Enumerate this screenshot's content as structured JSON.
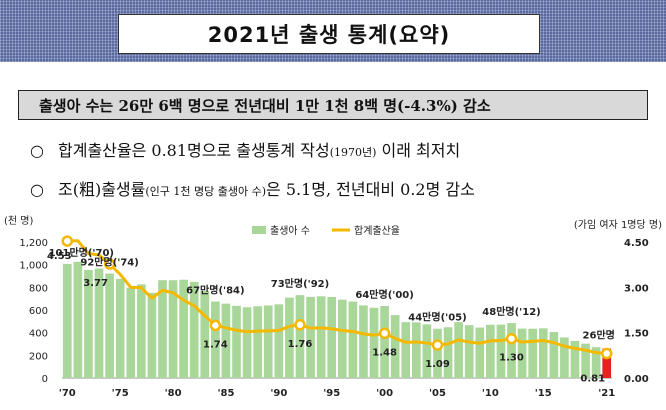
{
  "header": {
    "title": "2021년 출생 통계(요약)"
  },
  "summary": {
    "text": "출생아 수는 26만 6백 명으로 전년대비 1만 1천 8백 명(-4.3%) 감소"
  },
  "bullets": [
    {
      "mark": "○",
      "text": "합계출산율은 0.81명으로 출생통계 작성",
      "small": "(1970년)",
      "tail": " 이래 최저치"
    },
    {
      "mark": "○",
      "text": "조(粗)출생률",
      "small": "(인구 1천 명당 출생아 수)",
      "tail": "은 5.1명, 전년대비 0.2명 감소"
    }
  ],
  "chart_data": {
    "type": "bar+line",
    "left_axis_label": "(천 명)",
    "right_axis_label": "(가임 여자 1명당 명)",
    "left_ticks": [
      "1,200",
      "1,000",
      "800",
      "600",
      "400",
      "200",
      "0"
    ],
    "left_ylim": [
      0,
      1200
    ],
    "right_ticks": [
      "4.50",
      "3.00",
      "1.50",
      "0.00"
    ],
    "right_ylim": [
      0,
      4.5
    ],
    "x_ticks": [
      "'70",
      "'75",
      "'80",
      "'85",
      "'90",
      "'95",
      "'00",
      "'05",
      "'10",
      "'15",
      "'21"
    ],
    "legend": [
      "출생아 수",
      "합계출산율"
    ],
    "colors": {
      "bars": "#a9d79a",
      "highlight_bar": "#e8231f",
      "line": "#f5b800",
      "marker_fill": "#ffffff"
    },
    "years": [
      1970,
      1971,
      1972,
      1973,
      1974,
      1975,
      1976,
      1977,
      1978,
      1979,
      1980,
      1981,
      1982,
      1983,
      1984,
      1985,
      1986,
      1987,
      1988,
      1989,
      1990,
      1991,
      1992,
      1993,
      1994,
      1995,
      1996,
      1997,
      1998,
      1999,
      2000,
      2001,
      2002,
      2003,
      2004,
      2005,
      2006,
      2007,
      2008,
      2009,
      2010,
      2011,
      2012,
      2013,
      2014,
      2015,
      2016,
      2017,
      2018,
      2019,
      2020,
      2021
    ],
    "births": [
      1007,
      1025,
      953,
      966,
      922,
      875,
      797,
      826,
      751,
      863,
      863,
      867,
      848,
      770,
      675,
      656,
      637,
      624,
      633,
      640,
      650,
      709,
      731,
      716,
      721,
      715,
      691,
      675,
      641,
      620,
      635,
      555,
      493,
      491,
      473,
      435,
      448,
      493,
      466,
      445,
      470,
      471,
      485,
      436,
      435,
      438,
      406,
      358,
      327,
      303,
      272,
      260
    ],
    "tfr": [
      4.53,
      4.54,
      4.12,
      4.07,
      3.77,
      3.43,
      3.0,
      2.99,
      2.64,
      2.9,
      2.82,
      2.57,
      2.39,
      2.06,
      1.74,
      1.66,
      1.58,
      1.53,
      1.55,
      1.56,
      1.57,
      1.71,
      1.76,
      1.65,
      1.66,
      1.63,
      1.57,
      1.54,
      1.46,
      1.42,
      1.48,
      1.31,
      1.18,
      1.19,
      1.16,
      1.09,
      1.13,
      1.26,
      1.19,
      1.15,
      1.23,
      1.24,
      1.3,
      1.19,
      1.21,
      1.24,
      1.17,
      1.05,
      0.98,
      0.92,
      0.84,
      0.81
    ],
    "birth_labels": [
      {
        "text": "101만명('70)",
        "year": 1970
      },
      {
        "text": "92만명('74)",
        "year": 1974
      },
      {
        "text": "67만명('84)",
        "year": 1984
      },
      {
        "text": "73만명('92)",
        "year": 1992
      },
      {
        "text": "64만명('00)",
        "year": 2000
      },
      {
        "text": "44만명('05)",
        "year": 2005
      },
      {
        "text": "48만명('12)",
        "year": 2012
      },
      {
        "text": "26만명",
        "year": 2021
      }
    ],
    "tfr_labels": [
      {
        "text": "4.53",
        "year": 1970
      },
      {
        "text": "3.77",
        "year": 1974
      },
      {
        "text": "1.74",
        "year": 1984
      },
      {
        "text": "1.76",
        "year": 1992
      },
      {
        "text": "1.48",
        "year": 2000
      },
      {
        "text": "1.09",
        "year": 2005
      },
      {
        "text": "1.30",
        "year": 2012
      },
      {
        "text": "0.81",
        "year": 2021
      }
    ]
  }
}
